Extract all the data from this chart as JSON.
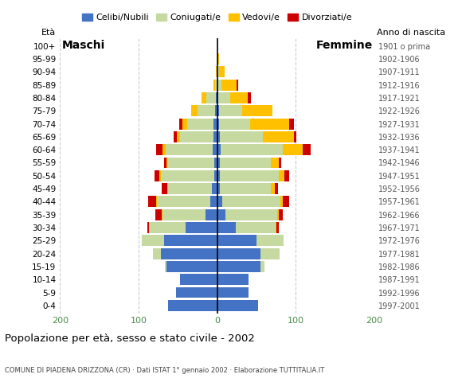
{
  "age_groups": [
    "0-4",
    "5-9",
    "10-14",
    "15-19",
    "20-24",
    "25-29",
    "30-34",
    "35-39",
    "40-44",
    "45-49",
    "50-54",
    "55-59",
    "60-64",
    "65-69",
    "70-74",
    "75-79",
    "80-84",
    "85-89",
    "90-94",
    "95-99",
    "100+"
  ],
  "birth_years": [
    "1997-2001",
    "1992-1996",
    "1987-1991",
    "1982-1986",
    "1977-1981",
    "1972-1976",
    "1967-1971",
    "1962-1966",
    "1957-1961",
    "1952-1956",
    "1947-1951",
    "1942-1946",
    "1937-1941",
    "1932-1936",
    "1927-1931",
    "1922-1926",
    "1917-1921",
    "1912-1916",
    "1907-1911",
    "1902-1906",
    "1901 o prima"
  ],
  "males": {
    "celibi": [
      62,
      52,
      47,
      65,
      72,
      68,
      40,
      15,
      9,
      7,
      4,
      4,
      6,
      5,
      5,
      3,
      2,
      0,
      0,
      0,
      0
    ],
    "coniugati": [
      0,
      0,
      0,
      2,
      10,
      28,
      47,
      55,
      68,
      55,
      68,
      58,
      60,
      42,
      33,
      22,
      12,
      3,
      1,
      0,
      0
    ],
    "vedovi": [
      0,
      0,
      0,
      0,
      0,
      0,
      0,
      1,
      1,
      1,
      2,
      2,
      4,
      4,
      6,
      8,
      6,
      2,
      1,
      0,
      0
    ],
    "divorziati": [
      0,
      0,
      0,
      0,
      0,
      0,
      2,
      8,
      10,
      8,
      6,
      4,
      8,
      4,
      4,
      0,
      0,
      0,
      0,
      0,
      0
    ]
  },
  "females": {
    "nubili": [
      52,
      40,
      40,
      55,
      55,
      50,
      24,
      11,
      6,
      3,
      3,
      3,
      4,
      3,
      2,
      2,
      1,
      0,
      0,
      0,
      0
    ],
    "coniugate": [
      0,
      0,
      0,
      5,
      25,
      35,
      50,
      65,
      75,
      65,
      75,
      65,
      80,
      55,
      40,
      30,
      16,
      5,
      2,
      0,
      0
    ],
    "vedove": [
      0,
      0,
      0,
      0,
      0,
      0,
      1,
      2,
      3,
      5,
      8,
      10,
      25,
      40,
      50,
      38,
      22,
      20,
      8,
      2,
      0
    ],
    "divorziate": [
      0,
      0,
      0,
      0,
      0,
      0,
      4,
      6,
      8,
      4,
      6,
      4,
      10,
      3,
      6,
      0,
      4,
      2,
      0,
      0,
      0
    ]
  },
  "colors": {
    "celibi": "#4472c4",
    "coniugati": "#c5d9a0",
    "vedovi": "#ffc000",
    "divorziati": "#cc0000"
  },
  "legend_labels": [
    "Celibi/Nubili",
    "Coniugati/e",
    "Vedovi/e",
    "Divorziati/e"
  ],
  "title": "Popolazione per età, sesso e stato civile - 2002",
  "subtitle": "COMUNE DI PIADENA DRIZZONA (CR) · Dati ISTAT 1° gennaio 2002 · Elaborazione TUTTITALIA.IT",
  "label_eta": "Età",
  "label_maschi": "Maschi",
  "label_femmine": "Femmine",
  "label_anno": "Anno di nascita",
  "xlim": 200,
  "xticks": [
    -200,
    -100,
    0,
    100,
    200
  ],
  "xticklabels": [
    "200",
    "100",
    "0",
    "100",
    "200"
  ]
}
